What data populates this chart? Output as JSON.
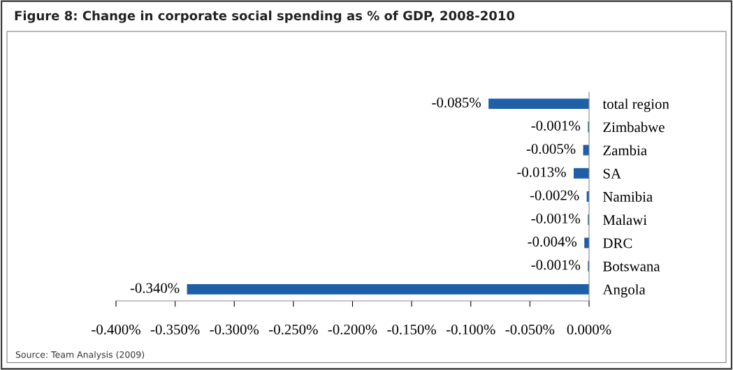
{
  "chart_data": {
    "type": "bar",
    "orientation": "horizontal",
    "title": "Figure 8: Change in corporate social spending as % of GDP, 2008-2010",
    "categories": [
      "total region",
      "Zimbabwe",
      "Zambia",
      "SA",
      "Namibia",
      "Malawi",
      "DRC",
      "Botswana",
      "Angola"
    ],
    "values": [
      -0.085,
      -0.001,
      -0.005,
      -0.013,
      -0.002,
      -0.001,
      -0.004,
      -0.001,
      -0.34
    ],
    "value_labels": [
      "-0.085%",
      "-0.001%",
      "-0.005%",
      "-0.013%",
      "-0.002%",
      "-0.001%",
      "-0.004%",
      "-0.001%",
      "-0.340%"
    ],
    "color": "#1f5fa8",
    "xlim": [
      -0.4,
      0
    ],
    "xticks": [
      {
        "value": -0.4,
        "label": "-0.400%"
      },
      {
        "value": -0.35,
        "label": "-0.350%"
      },
      {
        "value": -0.3,
        "label": "-0.300%"
      },
      {
        "value": -0.25,
        "label": "-0.250%"
      },
      {
        "value": -0.2,
        "label": "-0.200%"
      },
      {
        "value": -0.15,
        "label": "-0.150%"
      },
      {
        "value": -0.1,
        "label": "-0.100%"
      },
      {
        "value": -0.05,
        "label": "-0.050%"
      },
      {
        "value": 0,
        "label": "0.000%"
      }
    ],
    "grid": false,
    "legend": false,
    "annotations": [
      "Source: Team Analysis (2009)"
    ]
  }
}
